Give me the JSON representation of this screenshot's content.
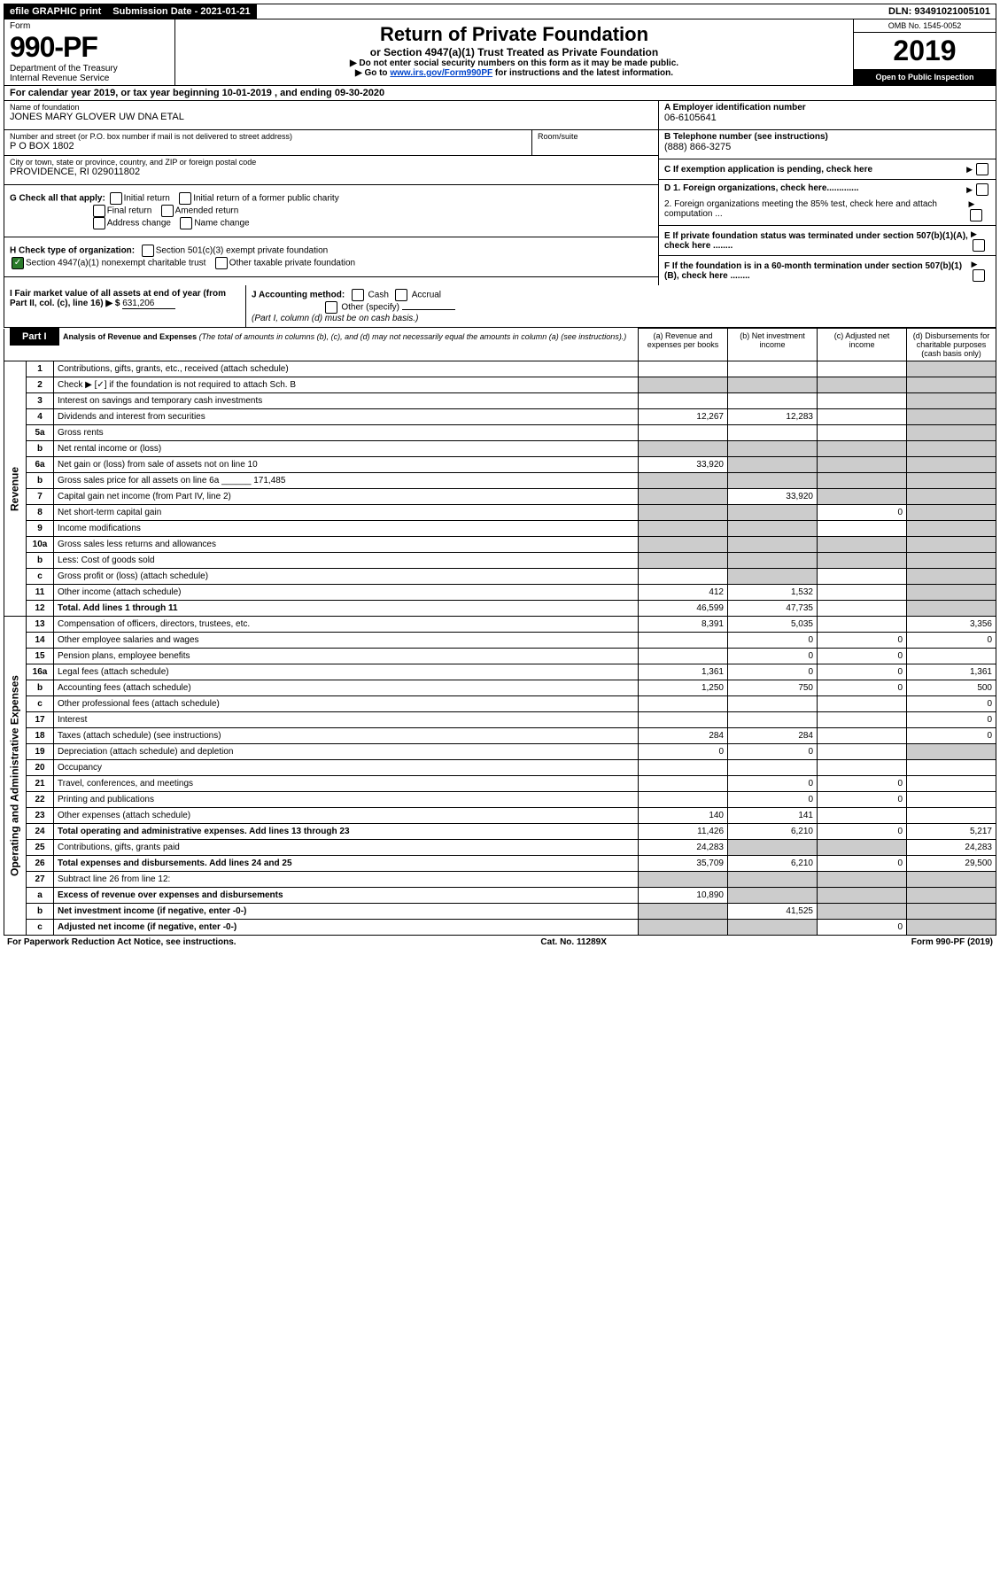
{
  "topbar": {
    "efile": "efile GRAPHIC print",
    "subdate_label": "Submission Date - ",
    "subdate": "2021-01-21",
    "dln_label": "DLN: ",
    "dln": "93491021005101"
  },
  "header": {
    "form_word": "Form",
    "form_num": "990-PF",
    "dept": "Department of the Treasury",
    "irs": "Internal Revenue Service",
    "title": "Return of Private Foundation",
    "subtitle": "or Section 4947(a)(1) Trust Treated as Private Foundation",
    "instr1": "▶ Do not enter social security numbers on this form as it may be made public.",
    "instr2": "▶ Go to ",
    "instr_link": "www.irs.gov/Form990PF",
    "instr3": " for instructions and the latest information.",
    "omb": "OMB No. 1545-0052",
    "year": "2019",
    "open": "Open to Public Inspection"
  },
  "calyear": {
    "prefix": "For calendar year 2019, or tax year beginning ",
    "begin": "10-01-2019",
    "mid": " , and ending ",
    "end": "09-30-2020"
  },
  "info": {
    "name_label": "Name of foundation",
    "name": "JONES MARY GLOVER UW DNA ETAL",
    "addr_label": "Number and street (or P.O. box number if mail is not delivered to street address)",
    "addr": "P O BOX 1802",
    "room_label": "Room/suite",
    "city_label": "City or town, state or province, country, and ZIP or foreign postal code",
    "city": "PROVIDENCE, RI  029011802",
    "a_label": "A Employer identification number",
    "a_val": "06-6105641",
    "b_label": "B Telephone number (see instructions)",
    "b_val": "(888) 866-3275",
    "c_label": "C If exemption application is pending, check here",
    "d1": "D 1. Foreign organizations, check here.............",
    "d2": "2. Foreign organizations meeting the 85% test, check here and attach computation ...",
    "e_label": "E  If private foundation status was terminated under section 507(b)(1)(A), check here ........",
    "f_label": "F  If the foundation is in a 60-month termination under section 507(b)(1)(B), check here ........"
  },
  "g": {
    "label": "G Check all that apply:",
    "opts": [
      "Initial return",
      "Initial return of a former public charity",
      "Final return",
      "Amended return",
      "Address change",
      "Name change"
    ]
  },
  "h": {
    "label": "H Check type of organization:",
    "opt1": "Section 501(c)(3) exempt private foundation",
    "opt2": "Section 4947(a)(1) nonexempt charitable trust",
    "opt3": "Other taxable private foundation"
  },
  "i": {
    "label": "I Fair market value of all assets at end of year (from Part II, col. (c), line 16) ▶ $",
    "val": "631,206"
  },
  "j": {
    "label": "J Accounting method:",
    "cash": "Cash",
    "accrual": "Accrual",
    "other": "Other (specify)",
    "note": "(Part I, column (d) must be on cash basis.)"
  },
  "part1": {
    "label": "Part I",
    "title": "Analysis of Revenue and Expenses",
    "desc": " (The total of amounts in columns (b), (c), and (d) may not necessarily equal the amounts in column (a) (see instructions).)",
    "cols": {
      "a": "(a) Revenue and expenses per books",
      "b": "(b) Net investment income",
      "c": "(c) Adjusted net income",
      "d": "(d) Disbursements for charitable purposes (cash basis only)"
    }
  },
  "sides": {
    "rev": "Revenue",
    "exp": "Operating and Administrative Expenses"
  },
  "rows": [
    {
      "n": "1",
      "d": "Contributions, gifts, grants, etc., received (attach schedule)",
      "a": "",
      "b": "",
      "c": "",
      "dc": "",
      "cg": false,
      "dg": true
    },
    {
      "n": "2",
      "d": "Check ▶ [✓] if the foundation is not required to attach Sch. B",
      "a": "",
      "b": "",
      "c": "",
      "dc": "",
      "ag": true,
      "bg": true,
      "cg": true,
      "dg": true
    },
    {
      "n": "3",
      "d": "Interest on savings and temporary cash investments",
      "a": "",
      "b": "",
      "c": "",
      "dc": "",
      "dg": true
    },
    {
      "n": "4",
      "d": "Dividends and interest from securities",
      "a": "12,267",
      "b": "12,283",
      "c": "",
      "dc": "",
      "dg": true
    },
    {
      "n": "5a",
      "d": "Gross rents",
      "a": "",
      "b": "",
      "c": "",
      "dc": "",
      "dg": true
    },
    {
      "n": "b",
      "d": "Net rental income or (loss)",
      "a": "",
      "b": "",
      "c": "",
      "dc": "",
      "ag": true,
      "bg": true,
      "cg": true,
      "dg": true
    },
    {
      "n": "6a",
      "d": "Net gain or (loss) from sale of assets not on line 10",
      "a": "33,920",
      "b": "",
      "c": "",
      "dc": "",
      "bg": true,
      "cg": true,
      "dg": true
    },
    {
      "n": "b",
      "d": "Gross sales price for all assets on line 6a ______ 171,485",
      "a": "",
      "b": "",
      "c": "",
      "dc": "",
      "ag": true,
      "bg": true,
      "cg": true,
      "dg": true
    },
    {
      "n": "7",
      "d": "Capital gain net income (from Part IV, line 2)",
      "a": "",
      "b": "33,920",
      "c": "",
      "dc": "",
      "ag": true,
      "cg": true,
      "dg": true
    },
    {
      "n": "8",
      "d": "Net short-term capital gain",
      "a": "",
      "b": "",
      "c": "0",
      "dc": "",
      "ag": true,
      "bg": true,
      "dg": true
    },
    {
      "n": "9",
      "d": "Income modifications",
      "a": "",
      "b": "",
      "c": "",
      "dc": "",
      "ag": true,
      "bg": true,
      "dg": true
    },
    {
      "n": "10a",
      "d": "Gross sales less returns and allowances",
      "a": "",
      "b": "",
      "c": "",
      "dc": "",
      "ag": true,
      "bg": true,
      "cg": true,
      "dg": true
    },
    {
      "n": "b",
      "d": "Less: Cost of goods sold",
      "a": "",
      "b": "",
      "c": "",
      "dc": "",
      "ag": true,
      "bg": true,
      "cg": true,
      "dg": true
    },
    {
      "n": "c",
      "d": "Gross profit or (loss) (attach schedule)",
      "a": "",
      "b": "",
      "c": "",
      "dc": "",
      "bg": true,
      "dg": true
    },
    {
      "n": "11",
      "d": "Other income (attach schedule)",
      "a": "412",
      "b": "1,532",
      "c": "",
      "dc": "",
      "dg": true
    },
    {
      "n": "12",
      "d": "Total. Add lines 1 through 11",
      "a": "46,599",
      "b": "47,735",
      "c": "",
      "dc": "",
      "bold": true,
      "dg": true
    },
    {
      "n": "13",
      "d": "Compensation of officers, directors, trustees, etc.",
      "a": "8,391",
      "b": "5,035",
      "c": "",
      "dc": "3,356"
    },
    {
      "n": "14",
      "d": "Other employee salaries and wages",
      "a": "",
      "b": "0",
      "c": "0",
      "dc": "0"
    },
    {
      "n": "15",
      "d": "Pension plans, employee benefits",
      "a": "",
      "b": "0",
      "c": "0",
      "dc": ""
    },
    {
      "n": "16a",
      "d": "Legal fees (attach schedule)",
      "a": "1,361",
      "b": "0",
      "c": "0",
      "dc": "1,361"
    },
    {
      "n": "b",
      "d": "Accounting fees (attach schedule)",
      "a": "1,250",
      "b": "750",
      "c": "0",
      "dc": "500"
    },
    {
      "n": "c",
      "d": "Other professional fees (attach schedule)",
      "a": "",
      "b": "",
      "c": "",
      "dc": "0"
    },
    {
      "n": "17",
      "d": "Interest",
      "a": "",
      "b": "",
      "c": "",
      "dc": "0"
    },
    {
      "n": "18",
      "d": "Taxes (attach schedule) (see instructions)",
      "a": "284",
      "b": "284",
      "c": "",
      "dc": "0"
    },
    {
      "n": "19",
      "d": "Depreciation (attach schedule) and depletion",
      "a": "0",
      "b": "0",
      "c": "",
      "dc": "",
      "dg": true
    },
    {
      "n": "20",
      "d": "Occupancy",
      "a": "",
      "b": "",
      "c": "",
      "dc": ""
    },
    {
      "n": "21",
      "d": "Travel, conferences, and meetings",
      "a": "",
      "b": "0",
      "c": "0",
      "dc": ""
    },
    {
      "n": "22",
      "d": "Printing and publications",
      "a": "",
      "b": "0",
      "c": "0",
      "dc": ""
    },
    {
      "n": "23",
      "d": "Other expenses (attach schedule)",
      "a": "140",
      "b": "141",
      "c": "",
      "dc": ""
    },
    {
      "n": "24",
      "d": "Total operating and administrative expenses. Add lines 13 through 23",
      "a": "11,426",
      "b": "6,210",
      "c": "0",
      "dc": "5,217",
      "bold": true
    },
    {
      "n": "25",
      "d": "Contributions, gifts, grants paid",
      "a": "24,283",
      "b": "",
      "c": "",
      "dc": "24,283",
      "bg": true,
      "cg": true
    },
    {
      "n": "26",
      "d": "Total expenses and disbursements. Add lines 24 and 25",
      "a": "35,709",
      "b": "6,210",
      "c": "0",
      "dc": "29,500",
      "bold": true
    },
    {
      "n": "27",
      "d": "Subtract line 26 from line 12:",
      "a": "",
      "b": "",
      "c": "",
      "dc": "",
      "ag": true,
      "bg": true,
      "cg": true,
      "dg": true
    },
    {
      "n": "a",
      "d": "Excess of revenue over expenses and disbursements",
      "a": "10,890",
      "b": "",
      "c": "",
      "dc": "",
      "bold": true,
      "bg": true,
      "cg": true,
      "dg": true
    },
    {
      "n": "b",
      "d": "Net investment income (if negative, enter -0-)",
      "a": "",
      "b": "41,525",
      "c": "",
      "dc": "",
      "bold": true,
      "ag": true,
      "cg": true,
      "dg": true
    },
    {
      "n": "c",
      "d": "Adjusted net income (if negative, enter -0-)",
      "a": "",
      "b": "",
      "c": "0",
      "dc": "",
      "bold": true,
      "ag": true,
      "bg": true,
      "dg": true
    }
  ],
  "footer": {
    "left": "For Paperwork Reduction Act Notice, see instructions.",
    "center": "Cat. No. 11289X",
    "right": "Form 990-PF (2019)"
  }
}
